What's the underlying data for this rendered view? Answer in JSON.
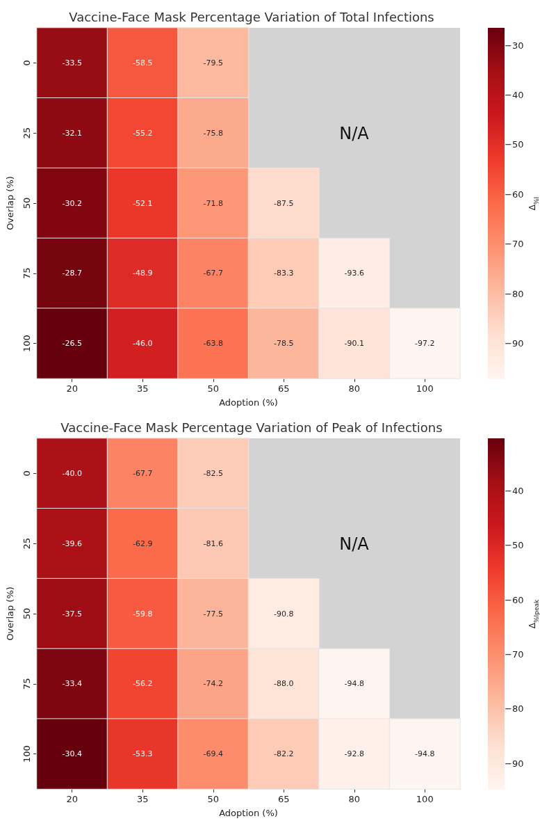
{
  "chart_data": [
    {
      "type": "heatmap",
      "title": "Vaccine-Face Mask Percentage Variation of Total Infections",
      "xlabel": "Adoption (%)",
      "ylabel": "Overlap (%)",
      "clabel": "Δ$_{%I}$",
      "categories": [
        "20",
        "35",
        "50",
        "65",
        "80",
        "100"
      ],
      "y_categories": [
        "0",
        "25",
        "50",
        "75",
        "100"
      ],
      "cells": [
        [
          -33.5,
          -58.5,
          -79.5,
          null,
          null,
          null
        ],
        [
          -32.1,
          -55.2,
          -75.8,
          null,
          null,
          null
        ],
        [
          -30.2,
          -52.1,
          -71.8,
          -87.5,
          null,
          null
        ],
        [
          -28.7,
          -48.9,
          -67.7,
          -83.3,
          -93.6,
          null
        ],
        [
          -26.5,
          -46.0,
          -63.8,
          -78.5,
          -90.1,
          -97.2
        ]
      ],
      "cell_labels": [
        [
          "-33.5",
          "-58.5",
          "-79.5",
          null,
          null,
          null
        ],
        [
          "-32.1",
          "-55.2",
          "-75.8",
          null,
          null,
          null
        ],
        [
          "-30.2",
          "-52.1",
          "-71.8",
          "-87.5",
          null,
          null
        ],
        [
          "-28.7",
          "-48.9",
          "-67.7",
          "-83.3",
          "-93.6",
          null
        ],
        [
          "-26.5",
          "-46.0",
          "-63.8",
          "-78.5",
          "-90.1",
          "-97.2"
        ]
      ],
      "clim": [
        -97.2,
        -26.5
      ],
      "cticks": [
        {
          "value": -90,
          "label": "−90"
        },
        {
          "value": -80,
          "label": "−80"
        },
        {
          "value": -70,
          "label": "−70"
        },
        {
          "value": -60,
          "label": "−60"
        },
        {
          "value": -50,
          "label": "−50"
        },
        {
          "value": -40,
          "label": "−40"
        },
        {
          "value": -30,
          "label": "−30"
        }
      ],
      "annotations": [
        "N/A"
      ]
    },
    {
      "type": "heatmap",
      "title": "Vaccine-Face Mask Percentage Variation of Peak of Infections",
      "xlabel": "Adoption (%)",
      "ylabel": "Overlap (%)",
      "clabel": "Δ$_{%I}$$_{peak}$",
      "categories": [
        "20",
        "35",
        "50",
        "65",
        "80",
        "100"
      ],
      "y_categories": [
        "0",
        "25",
        "50",
        "75",
        "100"
      ],
      "cells": [
        [
          -40.0,
          -67.7,
          -82.5,
          null,
          null,
          null
        ],
        [
          -39.6,
          -62.9,
          -81.6,
          null,
          null,
          null
        ],
        [
          -37.5,
          -59.8,
          -77.5,
          -90.8,
          null,
          null
        ],
        [
          -33.4,
          -56.2,
          -74.2,
          -88.0,
          -94.8,
          null
        ],
        [
          -30.4,
          -53.3,
          -69.4,
          -82.2,
          -92.8,
          -94.8
        ]
      ],
      "cell_labels": [
        [
          "-40.0",
          "-67.7",
          "-82.5",
          null,
          null,
          null
        ],
        [
          "-39.6",
          "-62.9",
          "-81.6",
          null,
          null,
          null
        ],
        [
          "-37.5",
          "-59.8",
          "-77.5",
          "-90.8",
          null,
          null
        ],
        [
          "-33.4",
          "-56.2",
          "-74.2",
          "-88.0",
          "-94.8",
          null
        ],
        [
          "-30.4",
          "-53.3",
          "-69.4",
          "-82.2",
          "-92.8",
          "-94.8"
        ]
      ],
      "clim": [
        -94.8,
        -30.4
      ],
      "cticks": [
        {
          "value": -90,
          "label": "−90"
        },
        {
          "value": -80,
          "label": "−80"
        },
        {
          "value": -70,
          "label": "−70"
        },
        {
          "value": -60,
          "label": "−60"
        },
        {
          "value": -50,
          "label": "−50"
        },
        {
          "value": -40,
          "label": "−40"
        }
      ],
      "annotations": [
        "N/A"
      ]
    }
  ]
}
